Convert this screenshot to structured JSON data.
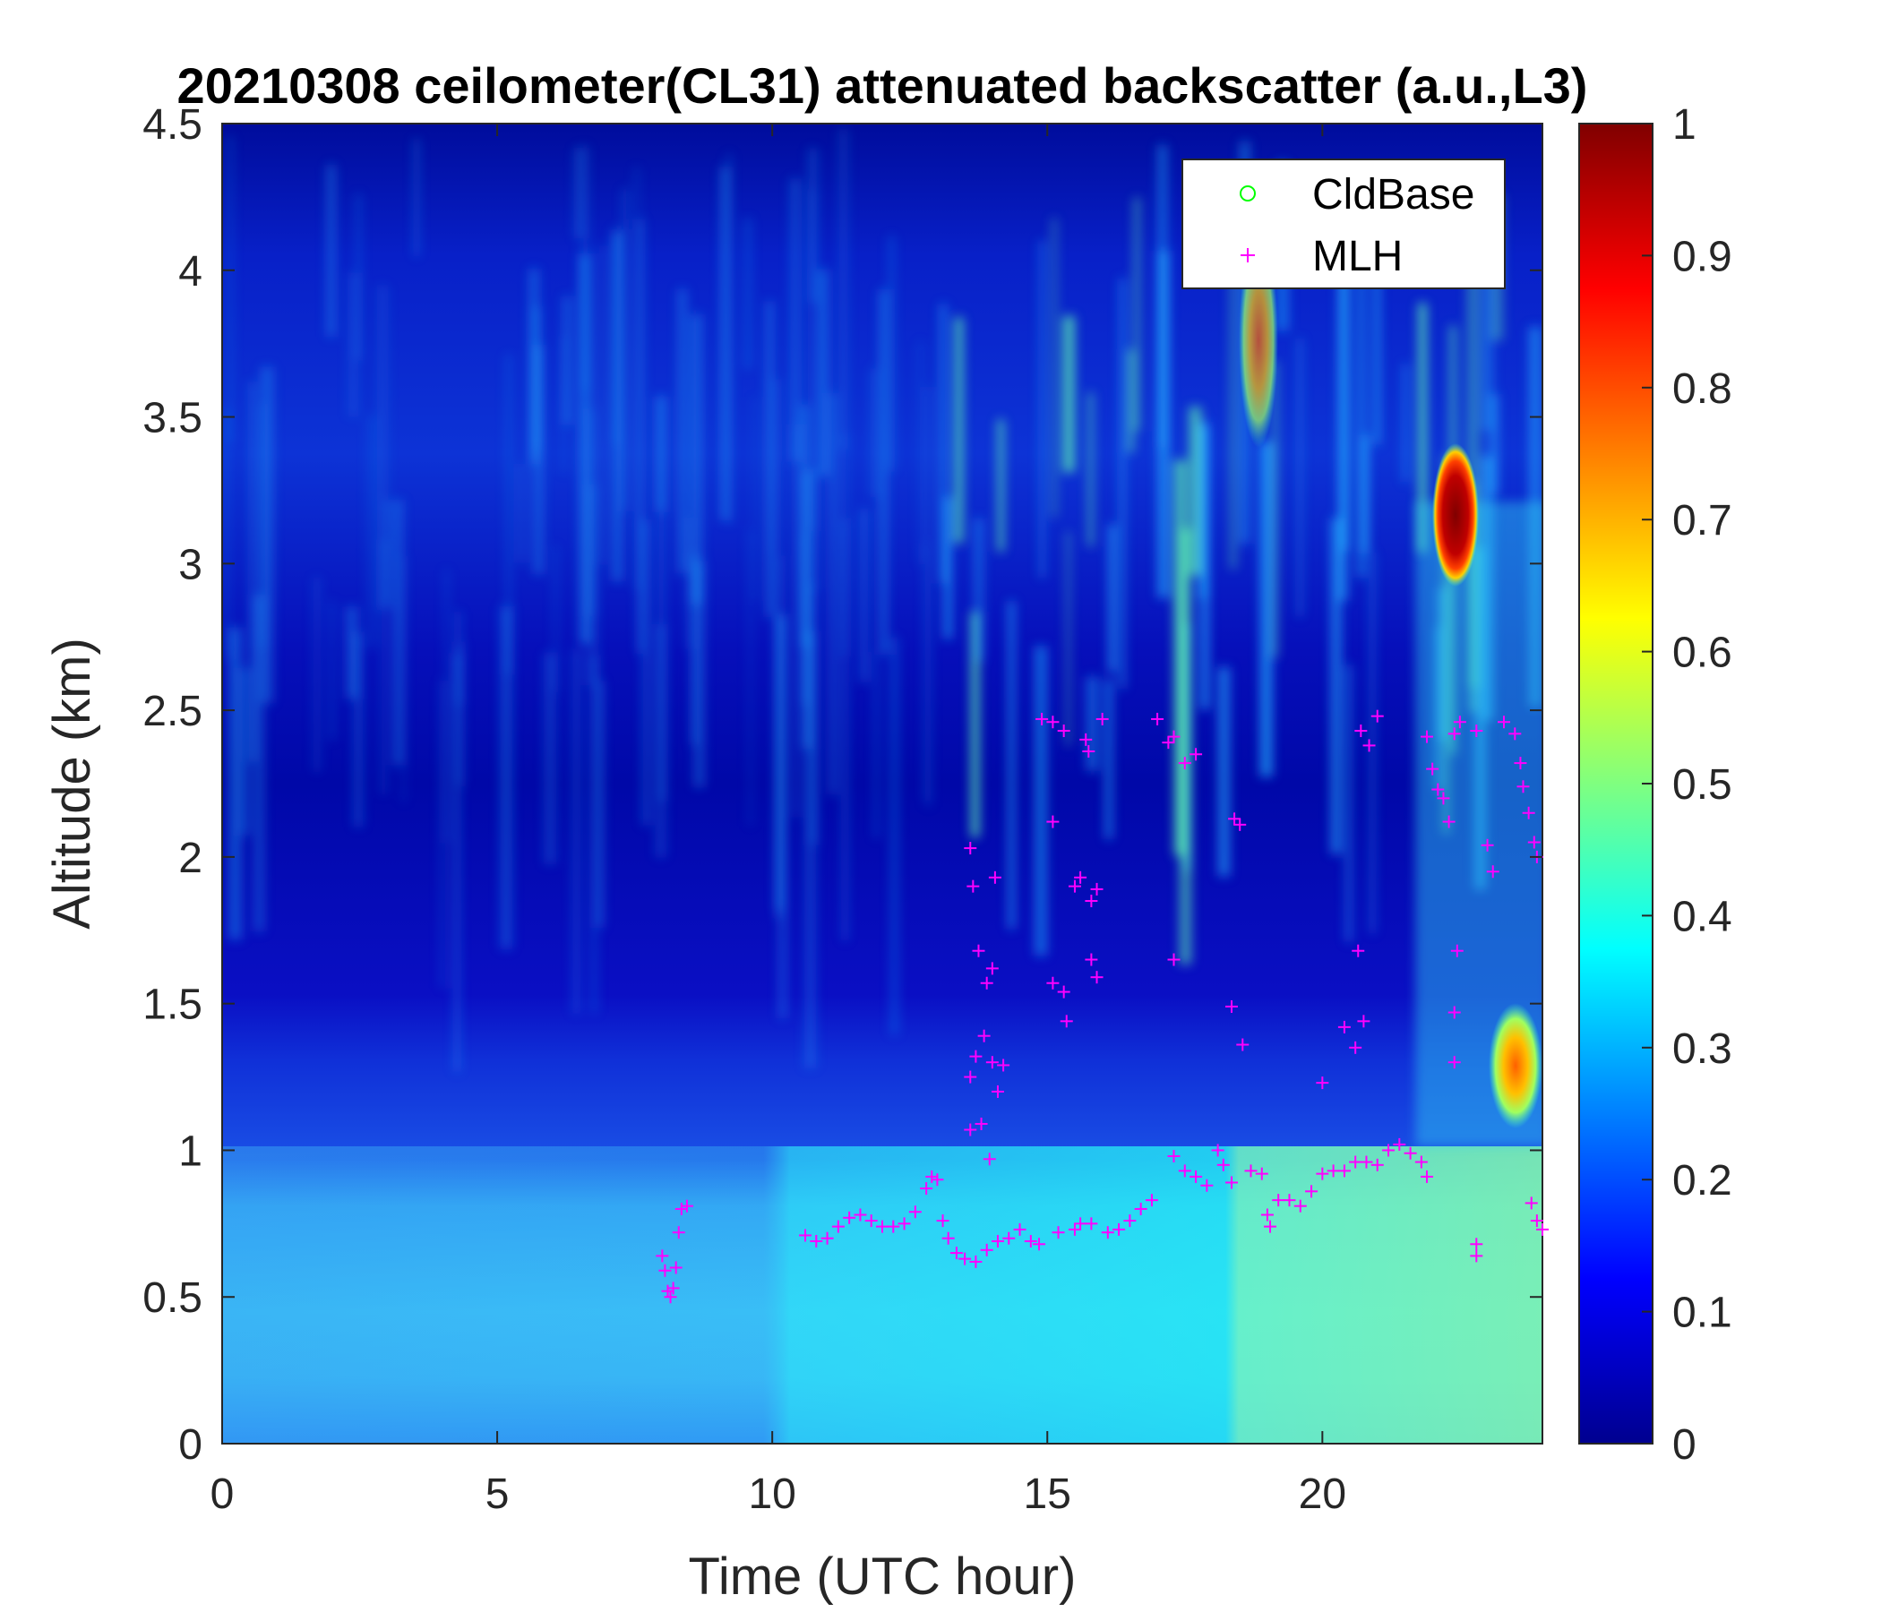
{
  "chart_data": {
    "type": "heatmap",
    "title": "20210308 ceilometer(CL31) attenuated backscatter (a.u.,L3)",
    "xlabel": "Time (UTC hour)",
    "ylabel": "Altitude (km)",
    "xlim": [
      0,
      24
    ],
    "ylim": [
      0,
      4.5
    ],
    "xticks": [
      0,
      5,
      10,
      15,
      20
    ],
    "xtick_labels": [
      "0",
      "5",
      "10",
      "15",
      "20"
    ],
    "yticks": [
      0,
      0.5,
      1,
      1.5,
      2,
      2.5,
      3,
      3.5,
      4,
      4.5
    ],
    "ytick_labels": [
      "0",
      "0.5",
      "1",
      "1.5",
      "2",
      "2.5",
      "3",
      "3.5",
      "4",
      "4.5"
    ],
    "colorbar": {
      "colormap": "jet",
      "clim": [
        0,
        1
      ],
      "ticks": [
        0,
        0.1,
        0.2,
        0.3,
        0.4,
        0.5,
        0.6,
        0.7,
        0.8,
        0.9,
        1
      ],
      "tick_labels": [
        "0",
        "0.1",
        "0.2",
        "0.3",
        "0.4",
        "0.5",
        "0.6",
        "0.7",
        "0.8",
        "0.9",
        "1"
      ]
    },
    "legend": {
      "location": "top-right",
      "entries": [
        {
          "label": "CldBase",
          "marker": "circle",
          "color": "#00ff00"
        },
        {
          "label": "MLH",
          "marker": "plus",
          "color": "#ff00ff"
        }
      ]
    },
    "cloud_base": {
      "name": "CldBase",
      "points": []
    },
    "mlh": {
      "name": "MLH",
      "points": [
        [
          8.0,
          0.64
        ],
        [
          8.05,
          0.59
        ],
        [
          8.1,
          0.52
        ],
        [
          8.15,
          0.5
        ],
        [
          8.2,
          0.53
        ],
        [
          8.25,
          0.6
        ],
        [
          8.3,
          0.72
        ],
        [
          8.35,
          0.8
        ],
        [
          8.45,
          0.81
        ],
        [
          10.6,
          0.71
        ],
        [
          10.8,
          0.69
        ],
        [
          11.0,
          0.7
        ],
        [
          11.2,
          0.74
        ],
        [
          11.4,
          0.77
        ],
        [
          11.6,
          0.78
        ],
        [
          11.8,
          0.76
        ],
        [
          12.0,
          0.74
        ],
        [
          12.2,
          0.74
        ],
        [
          12.4,
          0.75
        ],
        [
          12.6,
          0.79
        ],
        [
          12.8,
          0.87
        ],
        [
          12.9,
          0.91
        ],
        [
          13.0,
          0.9
        ],
        [
          13.1,
          0.76
        ],
        [
          13.2,
          0.7
        ],
        [
          13.35,
          0.65
        ],
        [
          13.5,
          0.63
        ],
        [
          13.7,
          0.62
        ],
        [
          13.9,
          0.66
        ],
        [
          14.1,
          0.69
        ],
        [
          14.3,
          0.7
        ],
        [
          14.5,
          0.73
        ],
        [
          14.7,
          0.69
        ],
        [
          14.85,
          0.68
        ],
        [
          15.2,
          0.72
        ],
        [
          15.5,
          0.73
        ],
        [
          15.6,
          0.75
        ],
        [
          15.8,
          0.75
        ],
        [
          16.1,
          0.72
        ],
        [
          16.3,
          0.73
        ],
        [
          16.5,
          0.76
        ],
        [
          16.7,
          0.8
        ],
        [
          16.9,
          0.83
        ],
        [
          13.6,
          2.03
        ],
        [
          13.65,
          1.9
        ],
        [
          13.75,
          1.68
        ],
        [
          13.9,
          1.57
        ],
        [
          14.0,
          1.62
        ],
        [
          13.85,
          1.39
        ],
        [
          13.7,
          1.32
        ],
        [
          13.6,
          1.25
        ],
        [
          14.0,
          1.3
        ],
        [
          14.2,
          1.29
        ],
        [
          13.6,
          1.07
        ],
        [
          13.8,
          1.09
        ],
        [
          13.95,
          0.97
        ],
        [
          14.05,
          1.93
        ],
        [
          14.1,
          1.2
        ],
        [
          15.1,
          2.12
        ],
        [
          15.1,
          1.57
        ],
        [
          15.3,
          1.54
        ],
        [
          15.35,
          1.44
        ],
        [
          15.5,
          1.9
        ],
        [
          15.6,
          1.93
        ],
        [
          15.8,
          1.85
        ],
        [
          15.9,
          1.89
        ],
        [
          15.8,
          1.65
        ],
        [
          15.9,
          1.59
        ],
        [
          14.9,
          2.47
        ],
        [
          15.1,
          2.46
        ],
        [
          15.3,
          2.43
        ],
        [
          15.7,
          2.4
        ],
        [
          15.75,
          2.36
        ],
        [
          16.0,
          2.47
        ],
        [
          17.0,
          2.47
        ],
        [
          17.2,
          2.39
        ],
        [
          17.3,
          2.41
        ],
        [
          17.5,
          2.32
        ],
        [
          17.7,
          2.35
        ],
        [
          17.3,
          1.65
        ],
        [
          17.3,
          0.98
        ],
        [
          17.5,
          0.93
        ],
        [
          17.7,
          0.91
        ],
        [
          17.9,
          0.88
        ],
        [
          18.1,
          1.0
        ],
        [
          18.2,
          0.95
        ],
        [
          18.35,
          0.89
        ],
        [
          18.4,
          2.13
        ],
        [
          18.5,
          2.11
        ],
        [
          18.35,
          1.49
        ],
        [
          18.55,
          1.36
        ],
        [
          18.7,
          0.93
        ],
        [
          18.9,
          0.92
        ],
        [
          19.0,
          0.78
        ],
        [
          19.05,
          0.74
        ],
        [
          19.2,
          0.83
        ],
        [
          19.4,
          0.83
        ],
        [
          19.6,
          0.81
        ],
        [
          19.8,
          0.86
        ],
        [
          20.0,
          0.92
        ],
        [
          20.2,
          0.93
        ],
        [
          20.4,
          0.93
        ],
        [
          20.6,
          0.96
        ],
        [
          20.8,
          0.96
        ],
        [
          21.0,
          0.95
        ],
        [
          21.2,
          1.0
        ],
        [
          21.4,
          1.02
        ],
        [
          21.6,
          0.99
        ],
        [
          21.8,
          0.96
        ],
        [
          21.9,
          0.91
        ],
        [
          20.0,
          1.23
        ],
        [
          20.4,
          1.42
        ],
        [
          20.6,
          1.35
        ],
        [
          20.65,
          1.68
        ],
        [
          20.75,
          1.44
        ],
        [
          20.7,
          2.43
        ],
        [
          20.85,
          2.38
        ],
        [
          21.0,
          2.48
        ],
        [
          21.9,
          2.41
        ],
        [
          22.0,
          2.3
        ],
        [
          22.1,
          2.23
        ],
        [
          22.2,
          2.2
        ],
        [
          22.3,
          2.12
        ],
        [
          22.4,
          2.42
        ],
        [
          22.5,
          2.46
        ],
        [
          22.8,
          2.43
        ],
        [
          22.45,
          1.68
        ],
        [
          22.4,
          1.47
        ],
        [
          22.4,
          1.3
        ],
        [
          22.8,
          0.68
        ],
        [
          22.8,
          0.64
        ],
        [
          23.3,
          2.46
        ],
        [
          23.5,
          2.42
        ],
        [
          23.6,
          2.32
        ],
        [
          23.65,
          2.24
        ],
        [
          23.75,
          2.15
        ],
        [
          23.85,
          2.05
        ],
        [
          23.9,
          2.0
        ],
        [
          23.0,
          2.04
        ],
        [
          23.1,
          1.95
        ],
        [
          23.8,
          0.82
        ],
        [
          23.9,
          0.76
        ],
        [
          24.0,
          0.73
        ]
      ]
    }
  }
}
